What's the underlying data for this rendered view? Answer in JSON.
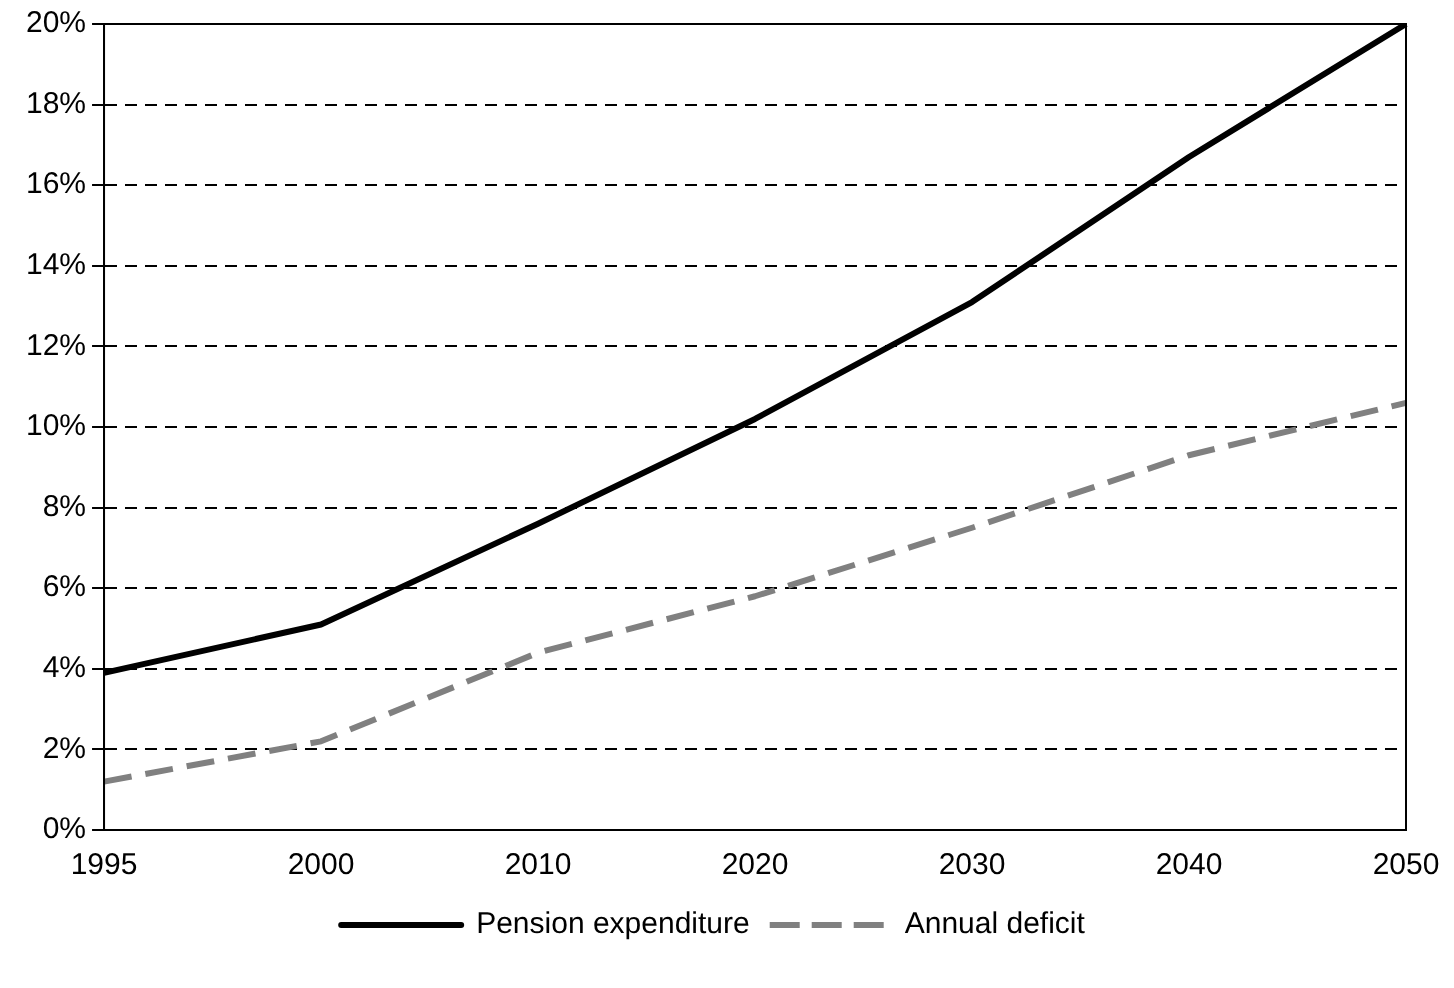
{
  "chart_data": {
    "type": "line",
    "categories": [
      "1995",
      "2000",
      "2010",
      "2020",
      "2030",
      "2040",
      "2050"
    ],
    "series": [
      {
        "name": "Pension expenditure",
        "color": "#000000",
        "line_style": "solid",
        "values": [
          3.9,
          5.1,
          7.6,
          10.2,
          13.1,
          16.7,
          20.0
        ]
      },
      {
        "name": "Annual deficit",
        "color": "#808080",
        "line_style": "dashed",
        "values": [
          1.2,
          2.2,
          4.4,
          5.8,
          7.5,
          9.3,
          10.6
        ]
      }
    ],
    "ylim": [
      0,
      20
    ],
    "yticks": [
      {
        "value": 0,
        "label": "0%"
      },
      {
        "value": 2,
        "label": "2%"
      },
      {
        "value": 4,
        "label": "4%"
      },
      {
        "value": 6,
        "label": "6%"
      },
      {
        "value": 8,
        "label": "8%"
      },
      {
        "value": 10,
        "label": "10%"
      },
      {
        "value": 12,
        "label": "12%"
      },
      {
        "value": 14,
        "label": "14%"
      },
      {
        "value": 16,
        "label": "16%"
      },
      {
        "value": 18,
        "label": "18%"
      },
      {
        "value": 20,
        "label": "20%"
      }
    ],
    "grid": "y",
    "legend": "bottom",
    "marker": "none"
  }
}
